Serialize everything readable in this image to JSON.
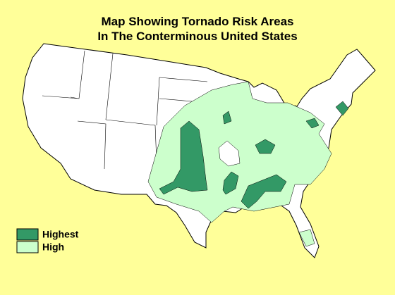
{
  "title": [
    "Map Showing Tornado Risk Areas",
    "In The Conterminous United States"
  ],
  "legend": [
    {
      "label": "Highest",
      "color": "#339966"
    },
    {
      "label": "High",
      "color": "#ccffcc"
    }
  ]
}
